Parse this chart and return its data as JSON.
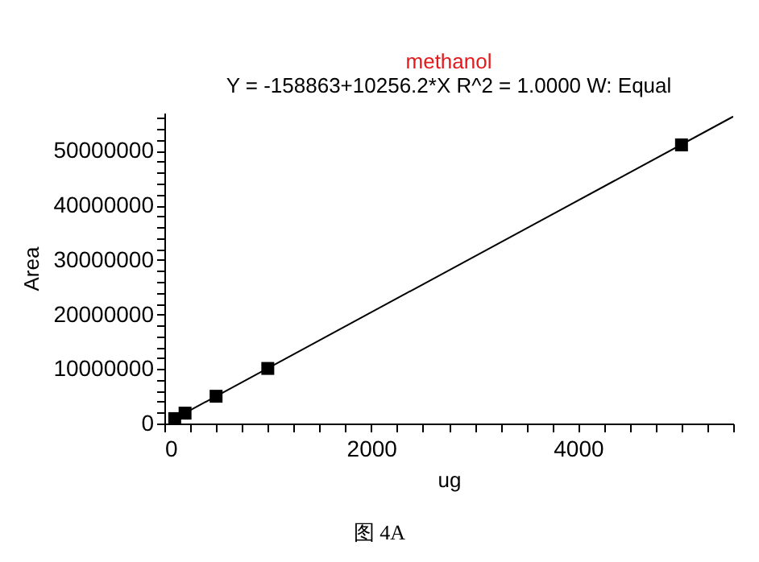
{
  "chart_data": {
    "type": "scatter",
    "title": "methanol",
    "subtitle": "Y = -158863+10256.2*X   R^2 = 1.0000   W: Equal",
    "xlabel": "ug",
    "ylabel": "Area",
    "x": [
      100,
      200,
      500,
      1000,
      5000
    ],
    "series": [
      {
        "type": "scatter",
        "color": "#000000",
        "marker": "square",
        "values": [
          900000,
          1900000,
          5000000,
          10100000,
          51100000
        ]
      },
      {
        "type": "line",
        "color": "#000000",
        "marker": "none",
        "x": [
          100,
          5500
        ],
        "values": [
          900000,
          56300000
        ]
      }
    ],
    "xlim": [
      0,
      5500
    ],
    "ylim": [
      0,
      57000000
    ],
    "xticks": [
      0,
      {
        "value": 250,
        "label": null
      },
      {
        "value": 500,
        "label": null
      },
      {
        "value": 750,
        "label": null
      },
      {
        "value": 1000,
        "label": null
      },
      {
        "value": 1250,
        "label": null
      },
      {
        "value": 1500,
        "label": null
      },
      {
        "value": 1750,
        "label": null
      },
      2000,
      {
        "value": 2250,
        "label": null
      },
      {
        "value": 2500,
        "label": null
      },
      {
        "value": 2750,
        "label": null
      },
      {
        "value": 3000,
        "label": null
      },
      {
        "value": 3250,
        "label": null
      },
      {
        "value": 3500,
        "label": null
      },
      {
        "value": 3750,
        "label": null
      },
      4000,
      {
        "value": 4250,
        "label": null
      },
      {
        "value": 4500,
        "label": null
      },
      {
        "value": 4750,
        "label": null
      },
      {
        "value": 5000,
        "label": null
      },
      {
        "value": 5250,
        "label": null
      },
      {
        "value": 5500,
        "label": null
      }
    ],
    "yticks": [
      0,
      {
        "value": 2000000,
        "label": null
      },
      {
        "value": 4000000,
        "label": null
      },
      {
        "value": 6000000,
        "label": null
      },
      {
        "value": 8000000,
        "label": null
      },
      10000000,
      {
        "value": 12000000,
        "label": null
      },
      {
        "value": 14000000,
        "label": null
      },
      {
        "value": 16000000,
        "label": null
      },
      {
        "value": 18000000,
        "label": null
      },
      20000000,
      {
        "value": 22000000,
        "label": null
      },
      {
        "value": 24000000,
        "label": null
      },
      {
        "value": 26000000,
        "label": null
      },
      {
        "value": 28000000,
        "label": null
      },
      30000000,
      {
        "value": 32000000,
        "label": null
      },
      {
        "value": 34000000,
        "label": null
      },
      {
        "value": 36000000,
        "label": null
      },
      {
        "value": 38000000,
        "label": null
      },
      40000000,
      {
        "value": 42000000,
        "label": null
      },
      {
        "value": 44000000,
        "label": null
      },
      {
        "value": 46000000,
        "label": null
      },
      {
        "value": 48000000,
        "label": null
      },
      50000000,
      {
        "value": 52000000,
        "label": null
      },
      {
        "value": 54000000,
        "label": null
      },
      {
        "value": 56000000,
        "label": null
      }
    ],
    "grid": false,
    "line_style": "solid",
    "annotations": [
      "图 4A"
    ]
  }
}
